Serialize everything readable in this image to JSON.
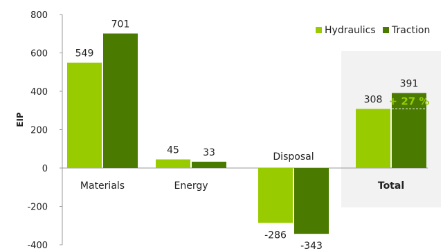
{
  "chart_data": {
    "type": "bar",
    "categories": [
      "Materials",
      "Energy",
      "Disposal",
      "Total"
    ],
    "series": [
      {
        "name": "Hydraulics",
        "values": [
          549,
          45,
          -286,
          308
        ],
        "color": "#99cc00"
      },
      {
        "name": "Traction",
        "values": [
          701,
          33,
          -343,
          391
        ],
        "color": "#4a7a00"
      }
    ],
    "ylabel": "EIP",
    "ylim": [
      -400,
      800
    ],
    "yticks": [
      "-400",
      "-200",
      "0",
      "200",
      "400",
      "600",
      "800"
    ],
    "value_labels": {
      "Hydraulics": [
        "549",
        "45",
        "-286",
        "308"
      ],
      "Traction": [
        "701",
        "33",
        "-343",
        "391"
      ]
    },
    "annotation": {
      "text": "+ 27 %",
      "category": "Total",
      "color": "#99cc00"
    },
    "highlight_category": "Total",
    "highlight_color": "#f2f2f2",
    "legend_position": "top-right",
    "grid": false
  }
}
